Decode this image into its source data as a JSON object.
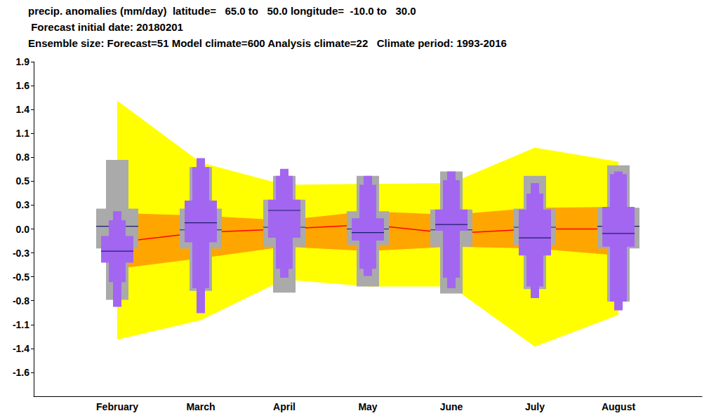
{
  "chart_data": {
    "type": "boxplot",
    "title": "precip. anomalies (mm/day)  latitude=   65.0 to   50.0 longitude=  -10.0 to   30.0",
    "subtitle": [
      " Forecast initial date: 20180201",
      "Ensemble size: Forecast=51 Model climate=600 Analysis climate=22   Climate period: 1993-2016"
    ],
    "categories": [
      null,
      "February",
      "March",
      "April",
      "May",
      "June",
      "July",
      "August",
      null
    ],
    "ylim": [
      -1.89,
      1.89
    ],
    "yticks": [
      {
        "value": -1.62,
        "label": "-1.6"
      },
      {
        "value": -1.35,
        "label": "-1.4"
      },
      {
        "value": -1.08,
        "label": "-1.1"
      },
      {
        "value": -0.81,
        "label": "-0.8"
      },
      {
        "value": -0.54,
        "label": "-0.5"
      },
      {
        "value": -0.27,
        "label": "-0.3"
      },
      {
        "value": 0,
        "label": "0.0"
      },
      {
        "value": 0.27,
        "label": "0.3"
      },
      {
        "value": 0.54,
        "label": "0.5"
      },
      {
        "value": 0.81,
        "label": "0.8"
      },
      {
        "value": 1.08,
        "label": "1.1"
      },
      {
        "value": 1.35,
        "label": "1.4"
      },
      {
        "value": 1.62,
        "label": "1.6"
      },
      {
        "value": 1.89,
        "label": "1.9"
      }
    ],
    "grid": false,
    "bands": [
      {
        "color": "#ffff00",
        "low": [
          null,
          -1.25,
          -1.03,
          -0.57,
          -0.65,
          -0.65,
          -1.33,
          -0.97,
          null
        ],
        "high": [
          null,
          1.45,
          0.75,
          0.5,
          0.51,
          0.52,
          0.92,
          0.76,
          null
        ]
      },
      {
        "color": "#ffa500",
        "low": [
          null,
          -0.45,
          -0.33,
          -0.2,
          -0.25,
          -0.2,
          -0.22,
          -0.3,
          null
        ],
        "high": [
          null,
          0.18,
          0.15,
          0.1,
          0.2,
          0.16,
          0.24,
          0.25,
          null
        ]
      }
    ],
    "lines": [
      {
        "color": "#ff0000",
        "values": [
          null,
          -0.15,
          -0.04,
          0.0,
          0.05,
          -0.05,
          0.0,
          0.0,
          null
        ]
      }
    ],
    "boxes": [
      {
        "color": "#aaaaaa",
        "min": [
          null,
          -0.8,
          -0.7,
          -0.72,
          -0.65,
          -0.73,
          -0.68,
          -0.82,
          null
        ],
        "q25": [
          null,
          -0.22,
          -0.22,
          -0.2,
          -0.18,
          -0.2,
          -0.18,
          -0.22,
          null
        ],
        "median": [
          null,
          0.03,
          -0.01,
          0.02,
          0.0,
          -0.01,
          0.02,
          0.03,
          null
        ],
        "q75": [
          null,
          0.23,
          0.23,
          0.33,
          0.2,
          0.22,
          0.23,
          0.24,
          null
        ],
        "max": [
          null,
          0.78,
          0.7,
          0.6,
          0.6,
          0.65,
          0.6,
          0.72,
          null
        ]
      },
      {
        "color": "#a366f0",
        "min": [
          null,
          -0.88,
          -0.95,
          -0.55,
          -0.53,
          -0.67,
          -0.78,
          -0.92,
          null
        ],
        "p10": [
          null,
          -0.6,
          -0.67,
          -0.45,
          -0.45,
          -0.55,
          -0.65,
          -0.82,
          null
        ],
        "q25": [
          null,
          -0.38,
          -0.15,
          -0.1,
          -0.13,
          -0.02,
          -0.3,
          -0.2,
          null
        ],
        "median": [
          null,
          -0.25,
          0.07,
          0.21,
          -0.04,
          0.05,
          -0.1,
          -0.05,
          null
        ],
        "q75": [
          null,
          -0.08,
          0.32,
          0.33,
          0.12,
          0.22,
          0.22,
          0.25,
          null
        ],
        "p90": [
          null,
          0.1,
          0.7,
          0.6,
          0.5,
          0.55,
          0.4,
          0.62,
          null
        ],
        "max": [
          null,
          0.2,
          0.8,
          0.68,
          0.6,
          0.65,
          0.52,
          0.65,
          null
        ]
      }
    ]
  }
}
